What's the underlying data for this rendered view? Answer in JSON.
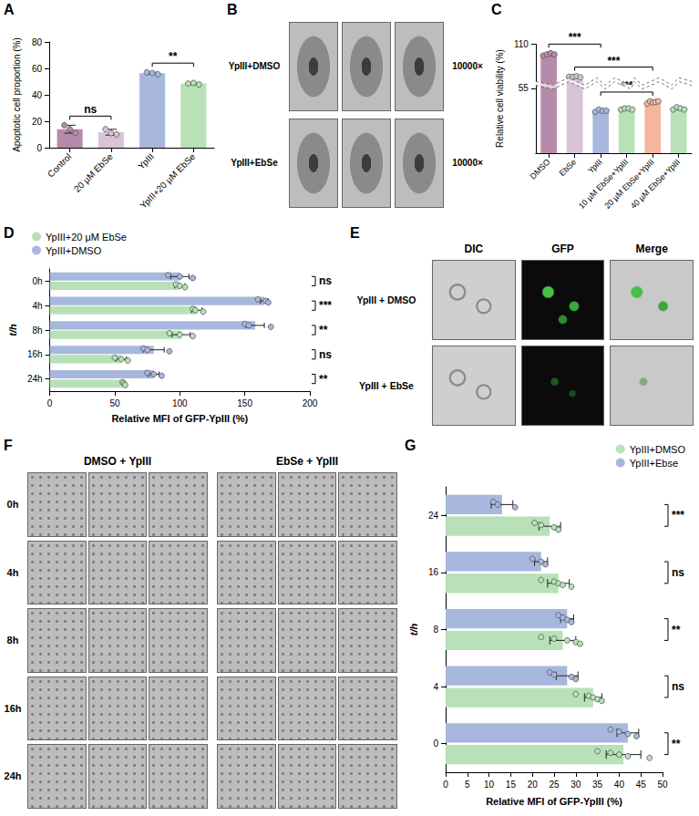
{
  "chart_data": [
    {
      "type": "bar",
      "panel": "A",
      "categories": [
        "Control",
        "20 µM EbSe",
        "YpIII",
        "YpIII+20 µM EbSe"
      ],
      "values": [
        14,
        11.7,
        56.3,
        48.4
      ],
      "errors": [
        3,
        2.2,
        0.8,
        0.6
      ],
      "points": [
        [
          17,
          14,
          11
        ],
        [
          14,
          11,
          10
        ],
        [
          57,
          56.5,
          55.5
        ],
        [
          48.5,
          49,
          47.8
        ]
      ],
      "colors": [
        "#b78aa9",
        "#d8c4d6",
        "#a7b7de",
        "#b8e1b8"
      ],
      "ylabel": "Apoptotic cell proportion (%)",
      "ylim": [
        0,
        80
      ],
      "yticks": [
        0,
        20,
        40,
        60,
        80
      ],
      "grid": false,
      "annotations": [
        {
          "from": "Control",
          "to": "20 µM EbSe",
          "label": "ns"
        },
        {
          "from": "YpIII",
          "to": "YpIII+20 µM EbSe",
          "label": "**"
        }
      ]
    },
    {
      "type": "bar",
      "panel": "C",
      "categories": [
        "DMSO",
        "EbSe",
        "YpIII",
        "10 µM EbSe+YpIII",
        "20 µM EbSe+YpIII",
        "40 µM EbSe+YpIII"
      ],
      "values": [
        101,
        82,
        36,
        37.5,
        43.3,
        37.8
      ],
      "errors": [
        0.8,
        0.5,
        0.8,
        0.5,
        0.8,
        0.9
      ],
      "points": [
        [
          100,
          101,
          102,
          101
        ],
        [
          82,
          82,
          82.5,
          81.5
        ],
        [
          35,
          37,
          36,
          36
        ],
        [
          37,
          38,
          38,
          37
        ],
        [
          42,
          44,
          43,
          43.5,
          44
        ],
        [
          37,
          39,
          38,
          37
        ]
      ],
      "colors": [
        "#b78aa9",
        "#d8c4d6",
        "#a7b7de",
        "#b8e1b8",
        "#f4b79e",
        "#b8e1b8"
      ],
      "ylabel": "Relative cell viability (%)",
      "ylim": [
        0,
        110
      ],
      "yticks": [
        55,
        110
      ],
      "ybreak": [
        58,
        78
      ],
      "grid": false,
      "annotations": [
        {
          "from": "DMSO",
          "to": "YpIII",
          "label": "***"
        },
        {
          "from": "EbSe",
          "to": "20 µM EbSe+YpIII",
          "label": "***"
        },
        {
          "from": "YpIII",
          "to": "20 µM EbSe+YpIII",
          "label": "***"
        }
      ]
    },
    {
      "type": "bar",
      "panel": "D",
      "orientation": "horizontal",
      "categories": [
        "0h",
        "4h",
        "8h",
        "16h",
        "24h"
      ],
      "series": [
        {
          "name": "YpIII+20 μM EbSe",
          "color": "#b8e1b8",
          "values": [
            100,
            113,
            101,
            55,
            57
          ],
          "errors": [
            4,
            4,
            7,
            4,
            1
          ],
          "points": [
            [
              97,
              100,
              104
            ],
            [
              110,
              112,
              118
            ],
            [
              92,
              100,
              110
            ],
            [
              50,
              55,
              60
            ],
            [
              56,
              57,
              58
            ]
          ]
        },
        {
          "name": "YpIII+DMSO",
          "color": "#a7b7de",
          "values": [
            100,
            165,
            158,
            80,
            80
          ],
          "errors": [
            7,
            3,
            7,
            8,
            4
          ],
          "points": [
            [
              91,
              100,
              110
            ],
            [
              160,
              166,
              168
            ],
            [
              150,
              153,
              170
            ],
            [
              72,
              75,
              92
            ],
            [
              75,
              80,
              86
            ]
          ]
        }
      ],
      "xlabel": "Relative MFI of GFP-YpIII (%)",
      "ylabel": "t/h",
      "xlim": [
        0,
        200
      ],
      "xticks": [
        0,
        50,
        100,
        150,
        200
      ],
      "grid": false,
      "legend": "upper left",
      "annotations": [
        {
          "category": "0h",
          "label": "ns"
        },
        {
          "category": "4h",
          "label": "***"
        },
        {
          "category": "8h",
          "label": "**"
        },
        {
          "category": "16h",
          "label": "ns"
        },
        {
          "category": "24h",
          "label": "**"
        }
      ]
    },
    {
      "type": "bar",
      "panel": "G",
      "orientation": "horizontal",
      "categories": [
        "0",
        "4",
        "8",
        "16",
        "24"
      ],
      "series": [
        {
          "name": "YpIII+DMSO",
          "color": "#b8e1b8",
          "values": [
            41,
            34,
            27,
            26,
            24
          ],
          "errors": [
            4,
            2,
            3,
            2.5,
            2.5
          ],
          "points": [
            [
              35,
              38,
              40,
              42,
              47
            ],
            [
              30,
              33,
              34,
              35,
              36
            ],
            [
              22,
              25,
              28,
              30,
              31
            ],
            [
              22,
              25,
              26,
              27,
              29
            ],
            [
              20.5,
              22,
              25,
              26
            ]
          ]
        },
        {
          "name": "YpIII+Ebse",
          "color": "#a7b7de",
          "values": [
            42,
            28,
            28,
            22,
            13
          ],
          "errors": [
            2.5,
            2.5,
            1.5,
            1.5,
            2.5
          ],
          "points": [
            [
              38,
              40,
              42,
              44
            ],
            [
              24,
              25,
              29,
              30
            ],
            [
              26,
              27,
              28,
              29
            ],
            [
              20,
              22,
              23
            ],
            [
              11,
              12,
              16
            ]
          ]
        }
      ],
      "xlabel": "Relative MFI of GFP-YpIII (%)",
      "ylabel": "t/h",
      "xlim": [
        0,
        50
      ],
      "xticks": [
        0,
        5,
        10,
        15,
        20,
        25,
        30,
        35,
        40,
        45,
        50
      ],
      "grid": false,
      "legend": "upper right",
      "annotations": [
        {
          "category": "24",
          "label": "***"
        },
        {
          "category": "16",
          "label": "ns"
        },
        {
          "category": "8",
          "label": "**"
        },
        {
          "category": "4",
          "label": "ns"
        },
        {
          "category": "0",
          "label": "**"
        }
      ]
    }
  ],
  "image_panels": [
    {
      "panel": "B",
      "rows": [
        "YpIII+DMSO",
        "YpIII+EbSe"
      ],
      "row_notes": [
        "10000×",
        "10000×"
      ],
      "images_per_row": 3
    },
    {
      "panel": "E",
      "columns": [
        "DIC",
        "GFP",
        "Merge"
      ],
      "rows": [
        "YpIII + DMSO",
        "YpIII + EbSe"
      ]
    },
    {
      "panel": "F",
      "groups": [
        "DMSO + YpIII",
        "EbSe + YpIII"
      ],
      "rows": [
        "0h",
        "4h",
        "8h",
        "16h",
        "24h"
      ],
      "images_per_row": 3
    }
  ]
}
